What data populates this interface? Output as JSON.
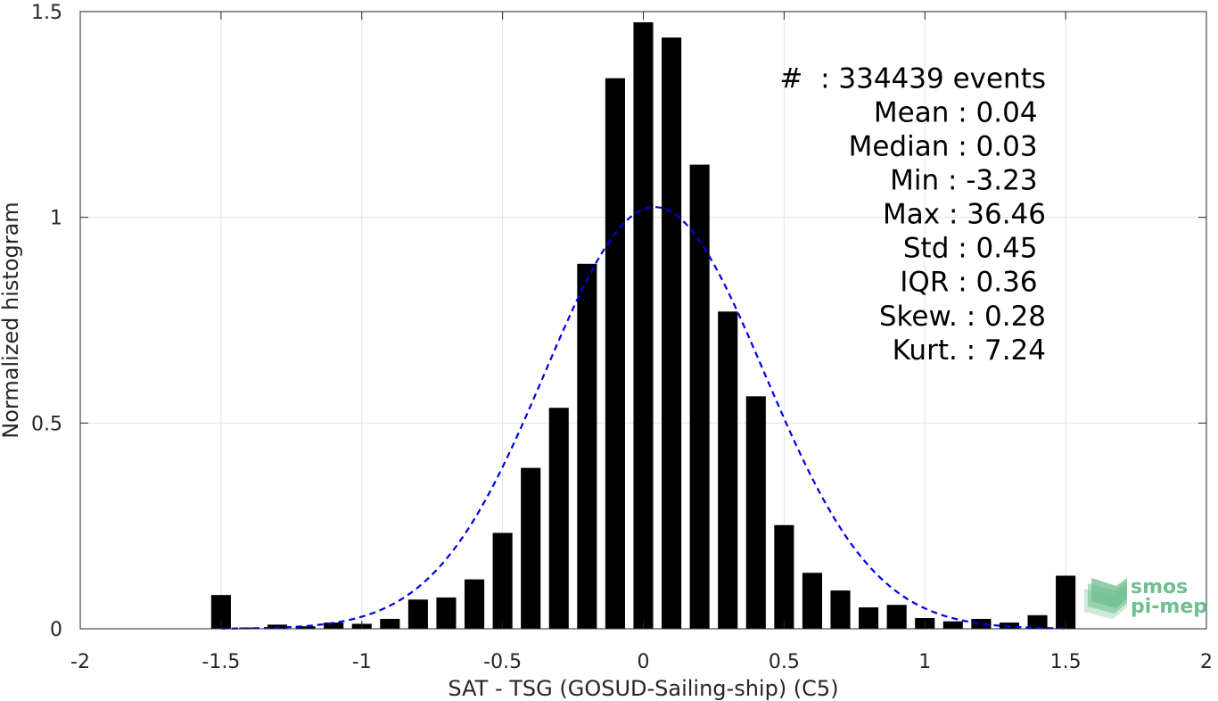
{
  "chart_data": {
    "type": "bar",
    "xlabel": "SAT - TSG (GOSUD-Sailing-ship) (C5)",
    "ylabel": "Normalized histogram",
    "xlim": [
      -2,
      2
    ],
    "ylim": [
      0,
      1.5
    ],
    "xticks": [
      -2,
      -1.5,
      -1,
      -0.5,
      0,
      0.5,
      1,
      1.5,
      2
    ],
    "xtick_labels": [
      "-2",
      "-1.5",
      "-1",
      "-0.5",
      "0",
      "0.5",
      "1",
      "1.5",
      "2"
    ],
    "yticks": [
      0,
      0.5,
      1,
      1.5
    ],
    "ytick_labels": [
      "0",
      "0.5",
      "1",
      "1.5"
    ],
    "grid": true,
    "bar_width": 0.07,
    "bars": {
      "x": [
        -1.5,
        -1.4,
        -1.3,
        -1.2,
        -1.1,
        -1.0,
        -0.9,
        -0.8,
        -0.7,
        -0.6,
        -0.5,
        -0.4,
        -0.3,
        -0.2,
        -0.1,
        0.0,
        0.1,
        0.2,
        0.3,
        0.4,
        0.5,
        0.6,
        0.7,
        0.8,
        0.9,
        1.0,
        1.1,
        1.2,
        1.3,
        1.4,
        1.5
      ],
      "values": [
        0.082,
        0.003,
        0.01,
        0.006,
        0.015,
        0.012,
        0.024,
        0.071,
        0.076,
        0.12,
        0.233,
        0.391,
        0.537,
        0.887,
        1.338,
        1.474,
        1.437,
        1.128,
        0.771,
        0.565,
        0.252,
        0.136,
        0.093,
        0.052,
        0.058,
        0.026,
        0.018,
        0.024,
        0.015,
        0.033,
        0.129
      ],
      "color": "#000000"
    },
    "fit_curve": {
      "kind": "gaussian",
      "mean": 0.04,
      "std": 0.39,
      "peak": 1.025,
      "x_range": [
        -1.5,
        1.5
      ],
      "color": "#0000e6",
      "style": "dashed"
    },
    "annotations": [
      {
        "label": "#  : 334439 events",
        "x": 1.43
      },
      {
        "label": "Mean : 0.04",
        "x": 1.4
      },
      {
        "label": "Median : 0.03",
        "x": 1.4
      },
      {
        "label": "Min : -3.23",
        "x": 1.4
      },
      {
        "label": "Max : 36.46",
        "x": 1.43
      },
      {
        "label": "Std : 0.45",
        "x": 1.4
      },
      {
        "label": "IQR : 0.36",
        "x": 1.4
      },
      {
        "label": "Skew. : 0.28",
        "x": 1.43
      },
      {
        "label": "Kurt. : 7.24",
        "x": 1.43
      }
    ],
    "annotation_y_top": 1.315,
    "annotation_y_step": 0.0825
  },
  "logo": {
    "line1": "smos",
    "line2": "pi-mep",
    "color": "#6fbf8f"
  }
}
